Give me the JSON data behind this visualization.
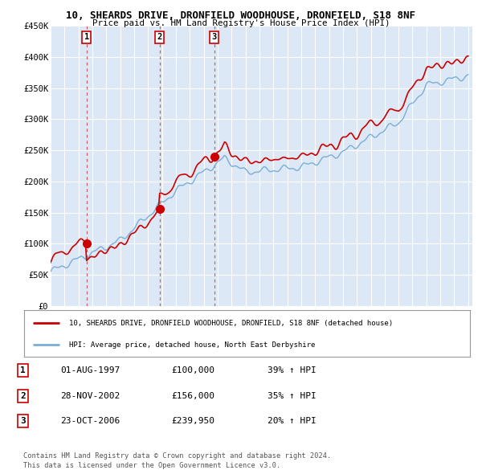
{
  "title_line1": "10, SHEARDS DRIVE, DRONFIELD WOODHOUSE, DRONFIELD, S18 8NF",
  "title_line2": "Price paid vs. HM Land Registry's House Price Index (HPI)",
  "ylim": [
    0,
    450000
  ],
  "yticks": [
    0,
    50000,
    100000,
    150000,
    200000,
    250000,
    300000,
    350000,
    400000,
    450000
  ],
  "ytick_labels": [
    "£0",
    "£50K",
    "£100K",
    "£150K",
    "£200K",
    "£250K",
    "£300K",
    "£350K",
    "£400K",
    "£450K"
  ],
  "sale_prices": [
    100000,
    156000,
    239950
  ],
  "sale_labels": [
    "1",
    "2",
    "3"
  ],
  "sale_pct": [
    "39% ↑ HPI",
    "35% ↑ HPI",
    "20% ↑ HPI"
  ],
  "sale_date_strs": [
    "01-AUG-1997",
    "28-NOV-2002",
    "23-OCT-2006"
  ],
  "property_color": "#cc0000",
  "hpi_color": "#7aaed6",
  "legend_property": "10, SHEARDS DRIVE, DRONFIELD WOODHOUSE, DRONFIELD, S18 8NF (detached house)",
  "legend_hpi": "HPI: Average price, detached house, North East Derbyshire",
  "footer_line1": "Contains HM Land Registry data © Crown copyright and database right 2024.",
  "footer_line2": "This data is licensed under the Open Government Licence v3.0.",
  "plot_bg_color": "#dce8f5"
}
